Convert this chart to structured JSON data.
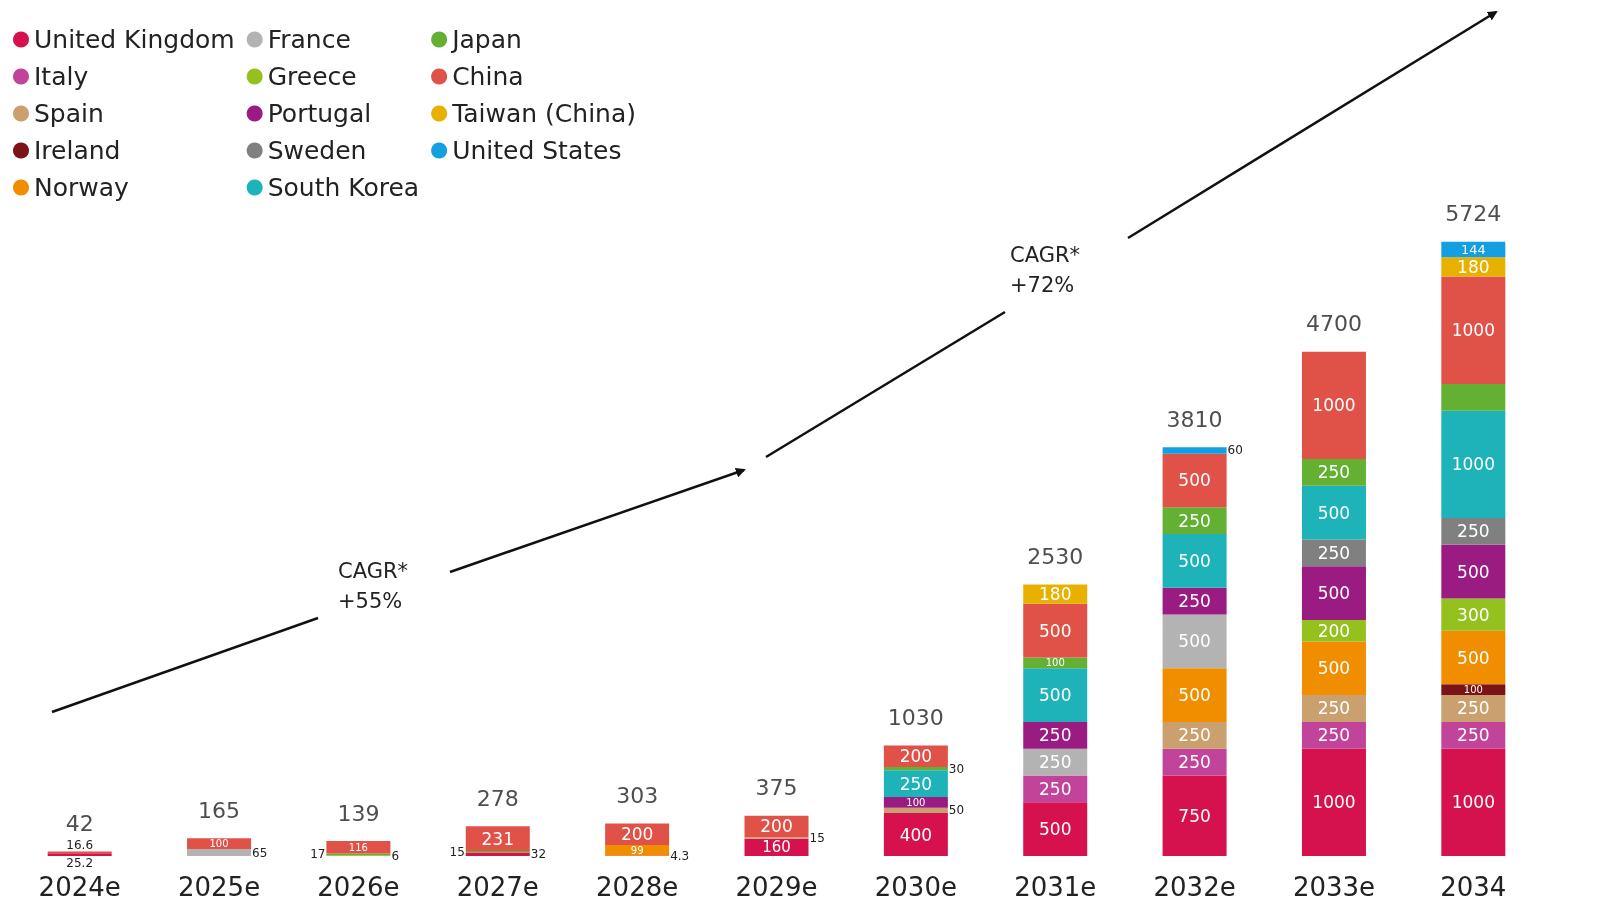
{
  "chart_data": {
    "type": "bar",
    "stacked": true,
    "data_labels": true,
    "legend": "top left",
    "categories": [
      "2024e",
      "2025e",
      "2026e",
      "2027e",
      "2028e",
      "2029e",
      "2030e",
      "2031e",
      "2032e",
      "2033e",
      "2034"
    ],
    "totals": [
      "42",
      "165",
      "139",
      "278",
      "303",
      "375",
      "1030",
      "2530",
      "3810",
      "4700",
      "5724"
    ],
    "annotations": [
      "CAGR*\n+55%",
      "CAGR*\n+72%"
    ],
    "series": [
      {
        "name": "United Kingdom",
        "color": "#d6124e",
        "values": [
          25.2,
          null,
          null,
          32,
          4.3,
          160,
          400,
          500,
          750,
          1000,
          1000
        ],
        "value_labels": [
          "25.2",
          null,
          null,
          "32",
          "4.3",
          "160",
          "400",
          "500",
          "750",
          "1000",
          "1000"
        ]
      },
      {
        "name": "Italy",
        "color": "#c2449a",
        "values": [
          null,
          null,
          null,
          null,
          null,
          null,
          null,
          250,
          250,
          250,
          250
        ],
        "value_labels": [
          null,
          null,
          null,
          null,
          null,
          null,
          null,
          "250",
          "250",
          "250",
          "250"
        ]
      },
      {
        "name": "Spain",
        "color": "#c9a06e",
        "values": [
          null,
          null,
          null,
          null,
          null,
          15,
          50,
          null,
          250,
          250,
          250
        ],
        "value_labels": [
          null,
          null,
          null,
          null,
          null,
          "15",
          "50",
          null,
          "250",
          "250",
          "250"
        ]
      },
      {
        "name": "Ireland",
        "color": "#7b1416",
        "values": [
          null,
          null,
          null,
          null,
          null,
          null,
          null,
          null,
          null,
          null,
          100
        ],
        "value_labels": [
          null,
          null,
          null,
          null,
          null,
          null,
          null,
          null,
          null,
          null,
          "100"
        ]
      },
      {
        "name": "Norway",
        "color": "#f18e00",
        "values": [
          null,
          null,
          null,
          null,
          99,
          null,
          null,
          null,
          500,
          500,
          500
        ],
        "value_labels": [
          null,
          null,
          null,
          null,
          "99",
          null,
          null,
          null,
          "500",
          "500",
          "500"
        ]
      },
      {
        "name": "France",
        "color": "#b3b3b3",
        "values": [
          null,
          65,
          null,
          null,
          null,
          null,
          null,
          250,
          500,
          null,
          null
        ],
        "value_labels": [
          null,
          "65",
          null,
          null,
          null,
          null,
          null,
          "250",
          "500",
          null,
          null
        ]
      },
      {
        "name": "Greece",
        "color": "#95c11f",
        "values": [
          null,
          null,
          6,
          null,
          null,
          null,
          null,
          null,
          null,
          200,
          300
        ],
        "value_labels": [
          null,
          null,
          "6",
          null,
          null,
          null,
          null,
          null,
          null,
          "200",
          "300"
        ]
      },
      {
        "name": "Portugal",
        "color": "#9a1b82",
        "values": [
          null,
          null,
          null,
          null,
          null,
          null,
          100,
          250,
          250,
          500,
          500
        ],
        "value_labels": [
          null,
          null,
          null,
          null,
          null,
          null,
          "100",
          "250",
          "250",
          "500",
          "500"
        ]
      },
      {
        "name": "Sweden",
        "color": "#808080",
        "values": [
          null,
          null,
          null,
          null,
          null,
          null,
          null,
          null,
          null,
          250,
          250
        ],
        "value_labels": [
          null,
          null,
          null,
          null,
          null,
          null,
          null,
          null,
          null,
          "250",
          "250"
        ]
      },
      {
        "name": "South Korea",
        "color": "#1db3b8",
        "values": [
          null,
          null,
          null,
          null,
          null,
          null,
          250,
          500,
          500,
          500,
          1000
        ],
        "value_labels": [
          null,
          null,
          null,
          null,
          null,
          null,
          "250",
          "500",
          "500",
          "500",
          "1000"
        ]
      },
      {
        "name": "Japan",
        "color": "#63b033",
        "values": [
          null,
          null,
          17,
          15,
          null,
          null,
          30,
          100,
          250,
          250,
          250
        ],
        "value_labels": [
          null,
          null,
          "17",
          "15",
          null,
          null,
          "30",
          "100",
          "250",
          "250",
          null
        ]
      },
      {
        "name": "China",
        "color": "#e05148",
        "values": [
          16.6,
          100,
          116,
          231,
          200,
          200,
          200,
          500,
          500,
          1000,
          1000
        ],
        "value_labels": [
          "16.6",
          "100",
          "116",
          "231",
          "200",
          "200",
          "200",
          "500",
          "500",
          "1000",
          "1000"
        ]
      },
      {
        "name": "Taiwan (China)",
        "color": "#e8b100",
        "values": [
          null,
          null,
          null,
          null,
          null,
          null,
          null,
          180,
          null,
          null,
          180
        ],
        "value_labels": [
          null,
          null,
          null,
          null,
          null,
          null,
          null,
          "180",
          null,
          null,
          "180"
        ]
      },
      {
        "name": "United States",
        "color": "#149fe0",
        "values": [
          null,
          null,
          null,
          null,
          null,
          null,
          null,
          null,
          60,
          null,
          144
        ],
        "value_labels": [
          null,
          null,
          null,
          null,
          null,
          null,
          null,
          null,
          "60",
          null,
          "144"
        ]
      }
    ]
  }
}
